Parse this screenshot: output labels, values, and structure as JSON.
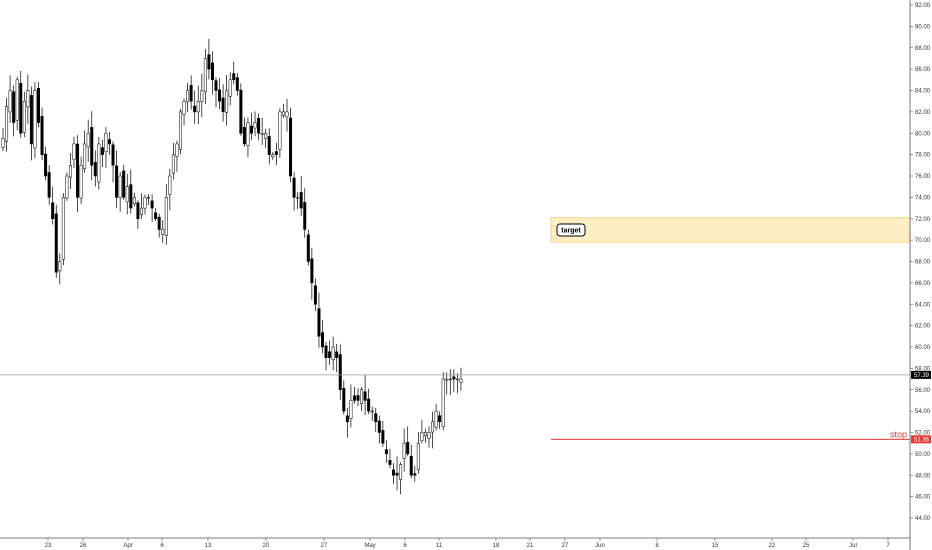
{
  "chart_data": {
    "type": "candlestick",
    "y_axis": {
      "ylim": [
        43,
        92.8
      ],
      "ticks": [
        44,
        46,
        48,
        50,
        52,
        54,
        56,
        58,
        60,
        62,
        64,
        66,
        68,
        70,
        72,
        74,
        76,
        78,
        80,
        82,
        84,
        86,
        88,
        90,
        92
      ],
      "tick_labels": [
        "44.00",
        "46.00",
        "48.00",
        "50.00",
        "52.00",
        "54.00",
        "56.00",
        "58.00",
        "60.00",
        "62.00",
        "64.00",
        "66.00",
        "68.00",
        "70.00",
        "72.00",
        "74.00",
        "76.00",
        "78.00",
        "80.00",
        "82.00",
        "84.00",
        "86.00",
        "88.00",
        "90.00",
        "92.00"
      ]
    },
    "x_axis": {
      "labels": [
        "23",
        "26",
        "Apr",
        "6",
        "13",
        "20",
        "27",
        "May",
        "6",
        "11",
        "18",
        "21",
        "27",
        "Jun",
        "8",
        "15",
        "22",
        "25",
        "Jul",
        "7"
      ]
    },
    "grid": false,
    "current_price": {
      "value": 57.39,
      "label": "57.39"
    },
    "stop": {
      "value": 51.36,
      "label": "51.36",
      "text": "stop"
    },
    "target_zone": {
      "low": 69.8,
      "high": 72.1,
      "text": "target"
    },
    "colors": {
      "up_fill": "#ffffff",
      "down_fill": "#000000",
      "wick": "#000000",
      "price_line": "#9e9e9e",
      "stop": "#e53935",
      "zone_fill": "#fdefc3",
      "zone_border": "#f2d27a",
      "axis_text": "#333333"
    },
    "ohlc_closes": [
      79.5,
      82.5,
      84,
      81,
      85,
      80,
      83,
      84,
      79,
      84,
      81,
      78,
      76,
      74,
      72,
      67,
      68,
      74,
      76,
      77,
      79,
      74,
      77,
      79,
      80,
      77,
      76,
      79,
      78,
      80,
      79,
      77,
      74,
      76,
      74,
      75,
      73,
      74,
      72,
      73,
      74,
      74,
      73,
      72,
      71,
      71,
      74,
      76,
      78,
      79,
      82,
      83,
      84,
      83,
      82,
      83,
      84,
      87,
      86,
      85,
      84,
      83,
      82,
      84,
      85,
      85,
      84,
      80,
      79,
      81,
      80,
      81,
      80,
      80,
      80,
      78,
      78,
      78,
      82,
      82,
      82,
      76,
      74,
      74,
      73,
      71,
      68,
      66,
      64,
      61,
      60,
      59,
      59,
      60,
      59,
      56,
      54,
      53,
      55,
      55,
      55,
      56,
      55,
      54,
      54,
      53,
      52,
      51,
      50,
      49,
      48,
      48,
      49,
      51,
      50,
      48,
      48,
      51,
      52,
      52,
      52,
      53,
      54,
      53,
      57,
      57,
      57,
      57,
      57,
      57
    ]
  }
}
